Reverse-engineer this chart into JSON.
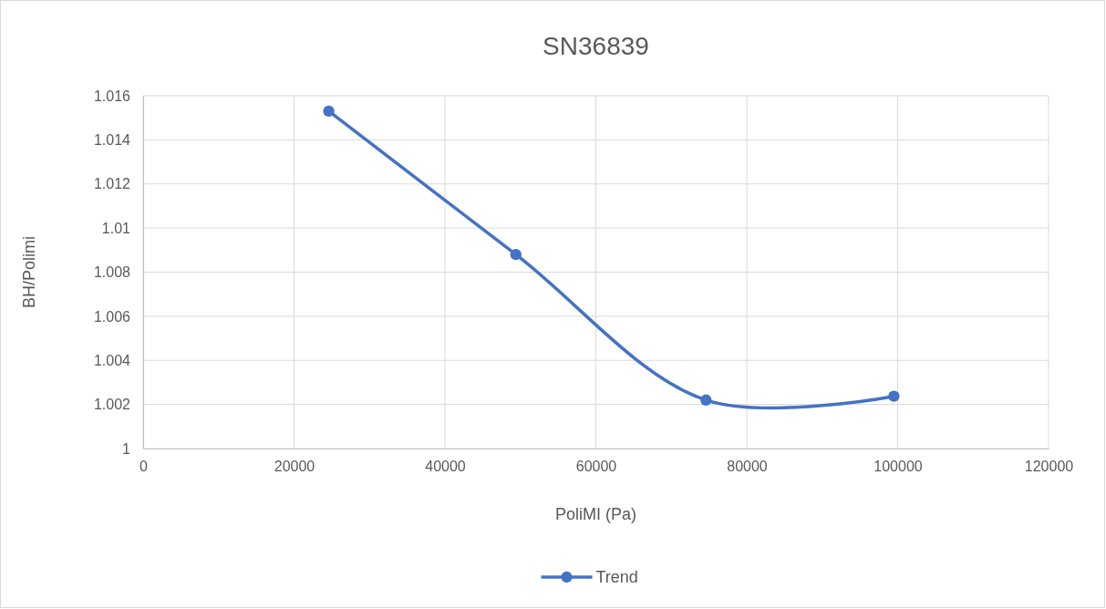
{
  "chart_data": {
    "type": "line",
    "title": "SN36839",
    "xlabel": "PoliMI (Pa)",
    "ylabel": "BH/Polimi",
    "series": [
      {
        "name": "Trend",
        "color": "#4472c4",
        "x": [
          24600,
          49400,
          74600,
          99500
        ],
        "values": [
          1.0153,
          1.0088,
          1.0022,
          1.00237
        ]
      }
    ],
    "xlim": [
      0,
      120000
    ],
    "xticks": [
      0,
      20000,
      40000,
      60000,
      80000,
      100000,
      120000
    ],
    "ylim": [
      1,
      1.016
    ],
    "yticks": [
      1,
      1.002,
      1.004,
      1.006,
      1.008,
      1.01,
      1.012,
      1.014,
      1.016
    ],
    "grid": true,
    "legend": "bottom",
    "marker": "circle",
    "line_style": "solid"
  }
}
